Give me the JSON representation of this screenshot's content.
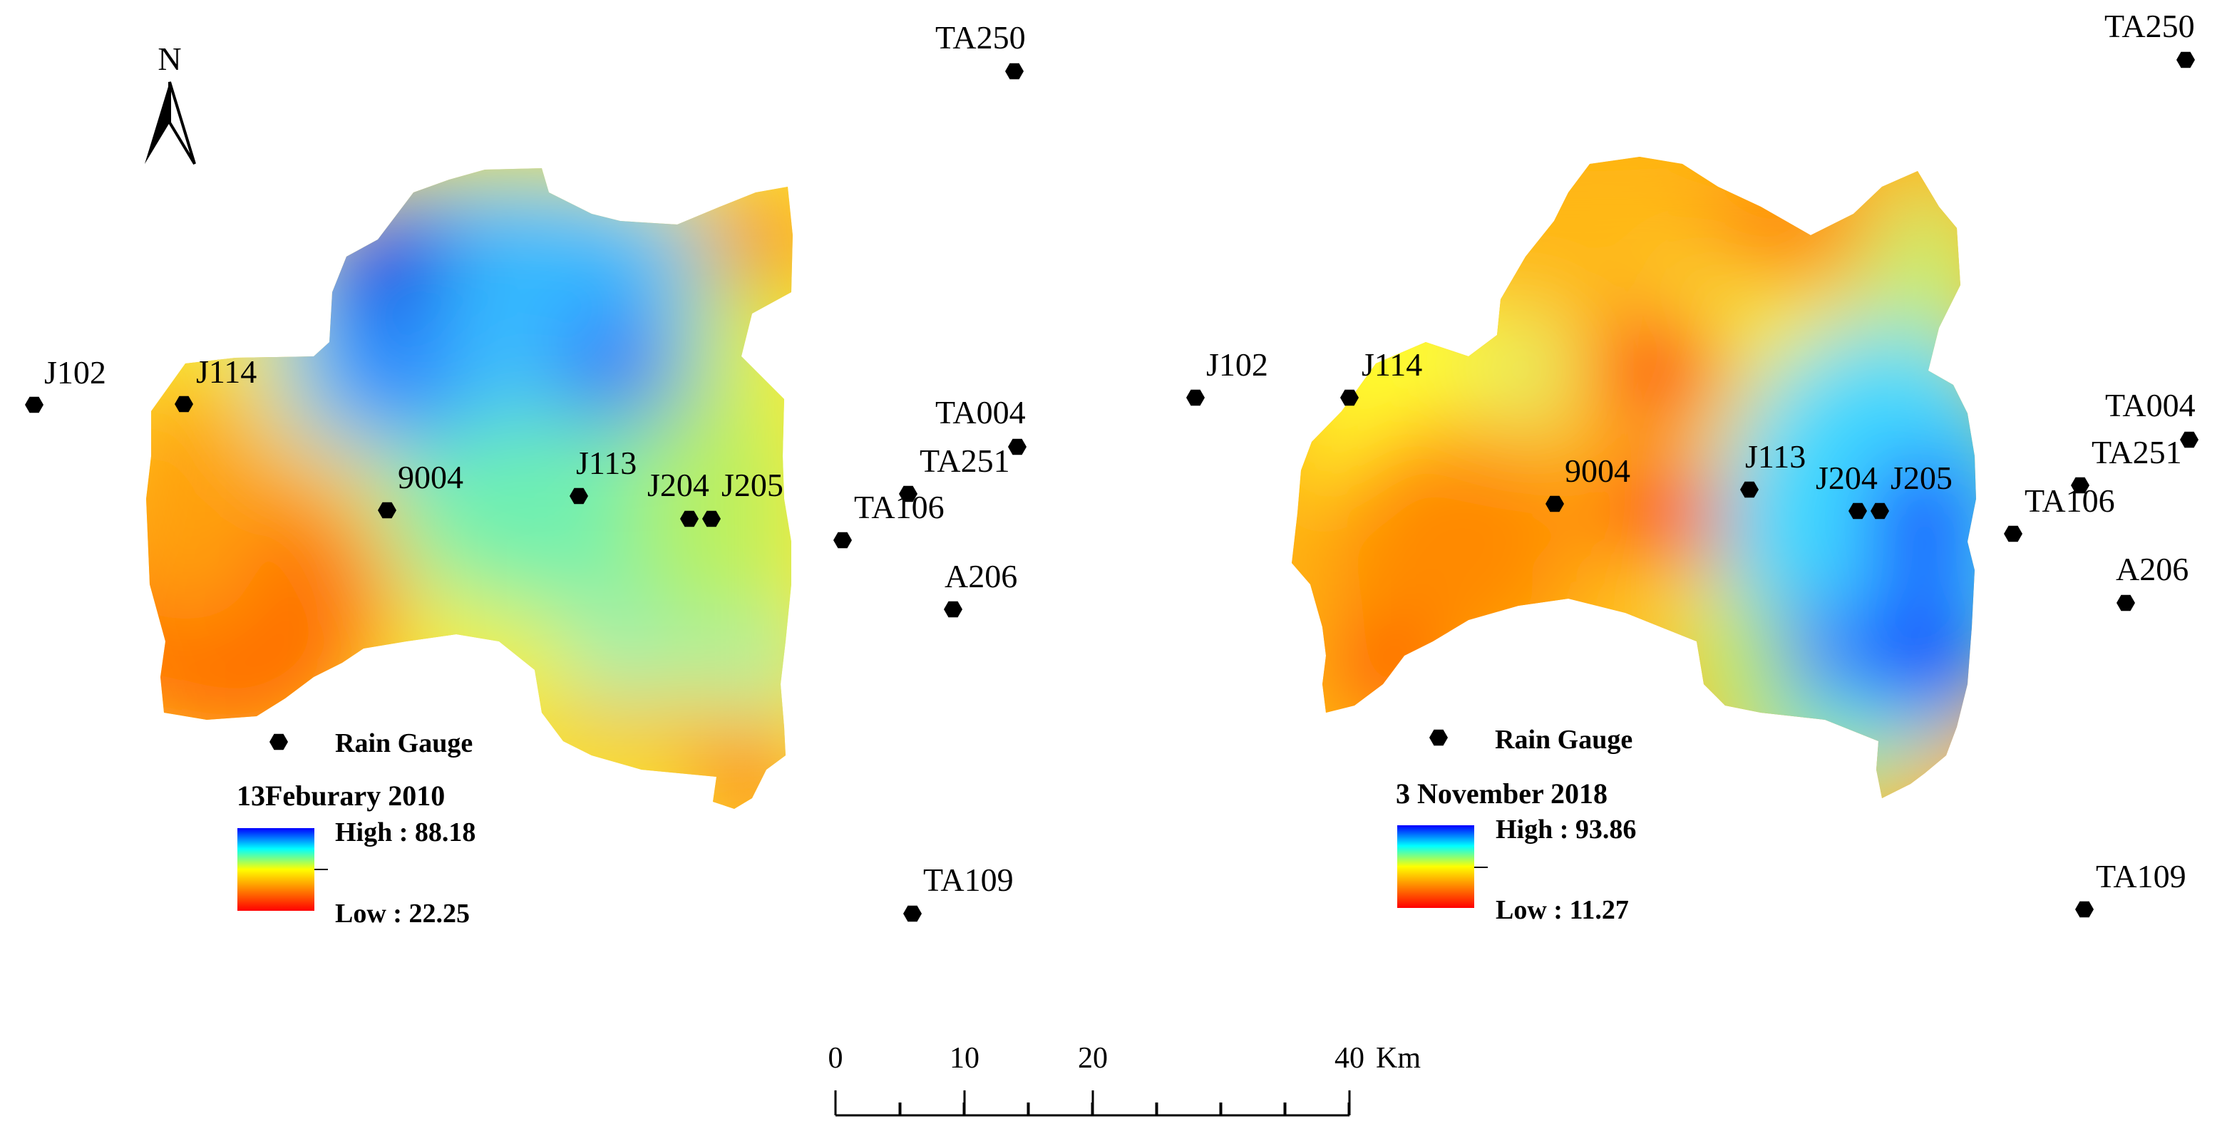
{
  "north_arrow": {
    "label": "N"
  },
  "panels": [
    {
      "id": "left",
      "legend": {
        "symbol_label": "Rain Gauge",
        "title": "13Feburary 2010",
        "high_label": "High : 88.18",
        "low_label": "Low : 22.25",
        "ramp_colors": [
          "#0000ff",
          "#00ffff",
          "#ffff00",
          "#ff8000",
          "#ff0000"
        ]
      },
      "gauges": [
        {
          "name": "J102"
        },
        {
          "name": "J114"
        },
        {
          "name": "9004"
        },
        {
          "name": "J113"
        },
        {
          "name": "J204"
        },
        {
          "name": "J205"
        },
        {
          "name": "TA106"
        },
        {
          "name": "TA251"
        },
        {
          "name": "TA004"
        },
        {
          "name": "A206"
        },
        {
          "name": "TA250"
        },
        {
          "name": "TA109"
        }
      ]
    },
    {
      "id": "right",
      "legend": {
        "symbol_label": "Rain Gauge",
        "title": "3 November 2018",
        "high_label": "High : 93.86",
        "low_label": "Low : 11.27",
        "ramp_colors": [
          "#0000ff",
          "#00ffff",
          "#ffff00",
          "#ff8000",
          "#ff0000"
        ]
      },
      "gauges": [
        {
          "name": "J102"
        },
        {
          "name": "J114"
        },
        {
          "name": "9004"
        },
        {
          "name": "J113"
        },
        {
          "name": "J204"
        },
        {
          "name": "J205"
        },
        {
          "name": "TA106"
        },
        {
          "name": "TA251"
        },
        {
          "name": "TA004"
        },
        {
          "name": "A206"
        },
        {
          "name": "TA250"
        },
        {
          "name": "TA109"
        }
      ]
    }
  ],
  "scale_bar": {
    "ticks": [
      "0",
      "10",
      "20",
      "40"
    ],
    "unit": "Km"
  }
}
